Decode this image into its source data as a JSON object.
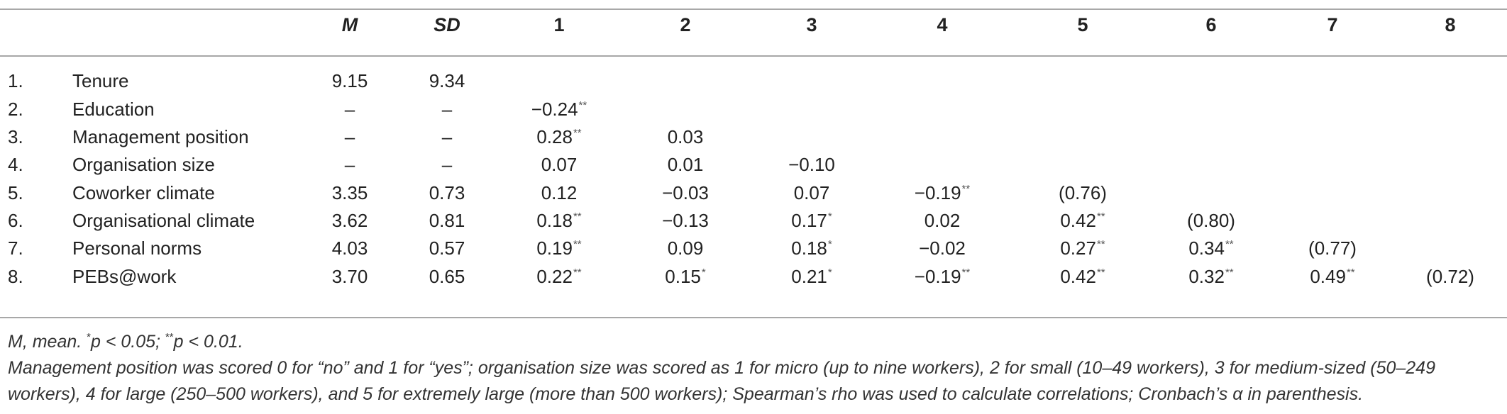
{
  "table": {
    "headers": [
      "M",
      "SD",
      "1",
      "2",
      "3",
      "4",
      "5",
      "6",
      "7",
      "8"
    ],
    "rows": [
      {
        "num": "1.",
        "label": "Tenure",
        "m": "9.15",
        "sd": "9.34",
        "corr": []
      },
      {
        "num": "2.",
        "label": "Education",
        "m": "–",
        "sd": "–",
        "corr": [
          {
            "v": "−0.24",
            "s": "**"
          }
        ]
      },
      {
        "num": "3.",
        "label": "Management position",
        "m": "–",
        "sd": "–",
        "corr": [
          {
            "v": "0.28",
            "s": "**"
          },
          {
            "v": "0.03",
            "s": ""
          }
        ]
      },
      {
        "num": "4.",
        "label": "Organisation size",
        "m": "–",
        "sd": "–",
        "corr": [
          {
            "v": "0.07",
            "s": ""
          },
          {
            "v": "0.01",
            "s": ""
          },
          {
            "v": "−0.10",
            "s": ""
          }
        ]
      },
      {
        "num": "5.",
        "label": "Coworker climate",
        "m": "3.35",
        "sd": "0.73",
        "corr": [
          {
            "v": "0.12",
            "s": ""
          },
          {
            "v": "−0.03",
            "s": ""
          },
          {
            "v": "0.07",
            "s": ""
          },
          {
            "v": "−0.19",
            "s": "**"
          },
          {
            "v": "(0.76)",
            "s": ""
          }
        ]
      },
      {
        "num": "6.",
        "label": "Organisational climate",
        "m": "3.62",
        "sd": "0.81",
        "corr": [
          {
            "v": "0.18",
            "s": "**"
          },
          {
            "v": "−0.13",
            "s": ""
          },
          {
            "v": "0.17",
            "s": "*"
          },
          {
            "v": "0.02",
            "s": ""
          },
          {
            "v": "0.42",
            "s": "**"
          },
          {
            "v": "(0.80)",
            "s": ""
          }
        ]
      },
      {
        "num": "7.",
        "label": "Personal norms",
        "m": "4.03",
        "sd": "0.57",
        "corr": [
          {
            "v": "0.19",
            "s": "**"
          },
          {
            "v": "0.09",
            "s": ""
          },
          {
            "v": "0.18",
            "s": "*"
          },
          {
            "v": "−0.02",
            "s": ""
          },
          {
            "v": "0.27",
            "s": "**"
          },
          {
            "v": "0.34",
            "s": "**"
          },
          {
            "v": "(0.77)",
            "s": ""
          }
        ]
      },
      {
        "num": "8.",
        "label": "PEBs@work",
        "m": "3.70",
        "sd": "0.65",
        "corr": [
          {
            "v": "0.22",
            "s": "**"
          },
          {
            "v": "0.15",
            "s": "*"
          },
          {
            "v": "0.21",
            "s": "*"
          },
          {
            "v": "−0.19",
            "s": "**"
          },
          {
            "v": "0.42",
            "s": "**"
          },
          {
            "v": "0.32",
            "s": "**"
          },
          {
            "v": "0.49",
            "s": "**"
          },
          {
            "v": "(0.72)",
            "s": ""
          }
        ]
      }
    ]
  },
  "notes": {
    "line1": {
      "a": "M, mean. ",
      "s1": "*",
      "b": "p < 0.05; ",
      "s2": "**",
      "c": "p < 0.01."
    },
    "line2": "Management position was scored 0 for “no” and 1 for “yes”; organisation size was scored as 1 for micro (up to nine workers), 2 for small (10–49 workers), 3 for medium-sized (50–249",
    "line3": "workers), 4 for large (250–500 workers), and 5 for extremely large (more than 500 workers); Spearman’s rho was used to calculate correlations; Cronbach’s α in parenthesis."
  }
}
